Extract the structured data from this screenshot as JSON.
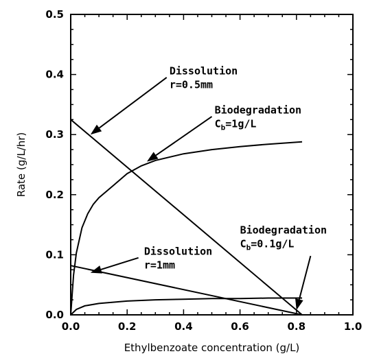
{
  "chart_data": {
    "type": "line",
    "title": "",
    "xlabel": "Ethylbenzoate concentration (g/L)",
    "ylabel": "Rate (g/L/hr)",
    "xlim": [
      0.0,
      1.0
    ],
    "ylim": [
      0.0,
      0.5
    ],
    "x_ticks": [
      "0.0",
      "0.2",
      "0.4",
      "0.6",
      "0.8",
      "1.0"
    ],
    "y_ticks": [
      "0.0",
      "0.1",
      "0.2",
      "0.3",
      "0.4",
      "0.5"
    ],
    "grid": false,
    "series": [
      {
        "x": [
          0.0,
          0.82
        ],
        "y": [
          0.325,
          0.0
        ]
      },
      {
        "x": [
          0.0,
          0.82
        ],
        "y": [
          0.082,
          0.0
        ]
      },
      {
        "x": [
          0.0,
          0.01,
          0.02,
          0.04,
          0.06,
          0.08,
          0.1,
          0.15,
          0.2,
          0.25,
          0.3,
          0.4,
          0.5,
          0.6,
          0.7,
          0.82
        ],
        "y": [
          0.0,
          0.066,
          0.103,
          0.145,
          0.168,
          0.184,
          0.195,
          0.215,
          0.235,
          0.248,
          0.257,
          0.268,
          0.275,
          0.28,
          0.284,
          0.288
        ]
      },
      {
        "x": [
          0.0,
          0.02,
          0.05,
          0.1,
          0.15,
          0.2,
          0.3,
          0.4,
          0.5,
          0.6,
          0.7,
          0.82
        ],
        "y": [
          0.0,
          0.009,
          0.015,
          0.019,
          0.021,
          0.023,
          0.025,
          0.026,
          0.027,
          0.027,
          0.028,
          0.028
        ]
      }
    ],
    "annotations": [
      {
        "lines": [
          "Dissolution",
          "r=0.5mm"
        ],
        "subscript": null,
        "text_pos": [
          0.35,
          0.4
        ],
        "arrow_from": [
          0.34,
          0.395
        ],
        "arrow_to": [
          0.07,
          0.3
        ]
      },
      {
        "lines": [
          "Biodegradation",
          "C",
          "=1g/L"
        ],
        "subscript": "b",
        "text_pos": [
          0.51,
          0.335
        ],
        "arrow_from": [
          0.5,
          0.33
        ],
        "arrow_to": [
          0.27,
          0.255
        ]
      },
      {
        "lines": [
          "Biodegradation",
          "C",
          "=0.1g/L"
        ],
        "subscript": "b",
        "text_pos": [
          0.6,
          0.135
        ],
        "arrow_from": [
          0.85,
          0.098
        ],
        "arrow_to": [
          0.8,
          0.008
        ]
      },
      {
        "lines": [
          "Dissolution",
          "r=1mm"
        ],
        "subscript": null,
        "text_pos": [
          0.26,
          0.1
        ],
        "arrow_from": [
          0.24,
          0.095
        ],
        "arrow_to": [
          0.07,
          0.07
        ]
      }
    ]
  }
}
